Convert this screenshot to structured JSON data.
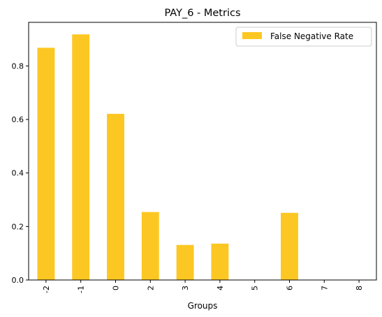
{
  "chart_data": {
    "type": "bar",
    "title": "PAY_6 - Metrics",
    "xlabel": "Groups",
    "ylabel": "",
    "categories": [
      "-2",
      "-1",
      "0",
      "2",
      "3",
      "4",
      "5",
      "6",
      "7",
      "8"
    ],
    "series": [
      {
        "name": "False Negative Rate",
        "color": "#FDC723",
        "values": [
          0.868,
          0.918,
          0.621,
          0.254,
          0.131,
          0.136,
          0,
          0.251,
          0,
          0
        ]
      }
    ],
    "ylim": [
      0,
      0.963
    ],
    "yticks": [
      0.0,
      0.2,
      0.4,
      0.6,
      0.8
    ],
    "ytick_labels": [
      "0.0",
      "0.2",
      "0.4",
      "0.6",
      "0.8"
    ],
    "legend_position": "top-right",
    "grid": false
  }
}
